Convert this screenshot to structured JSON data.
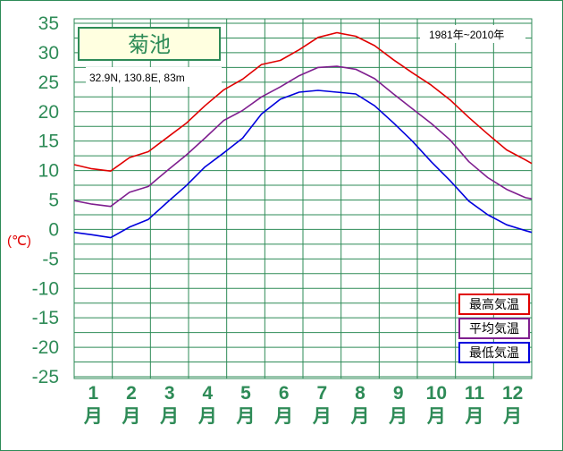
{
  "station_name": "菊池",
  "coords": "32.9N,  130.8E,  83m",
  "period": "1981年~2010年",
  "unit_label": "(℃)",
  "chart_data": {
    "type": "line",
    "ylim": [
      -25,
      35
    ],
    "yticks": [
      "35",
      "30",
      "25",
      "20",
      "15",
      "10",
      "5",
      "0",
      "-5",
      "-10",
      "-15",
      "-20",
      "-25"
    ],
    "months": [
      "1",
      "2",
      "3",
      "4",
      "5",
      "6",
      "7",
      "8",
      "9",
      "10",
      "11",
      "12"
    ],
    "month_suffix": "月",
    "x": [
      1,
      15,
      30,
      45,
      60,
      75,
      90,
      105,
      120,
      135,
      150,
      165,
      180,
      195,
      210,
      225,
      240,
      255,
      270,
      285,
      300,
      315,
      330,
      345,
      360,
      365
    ],
    "series": [
      {
        "name": "最高気温",
        "color": "#e00000",
        "values": [
          11.0,
          10.3,
          9.9,
          12.2,
          13.2,
          15.6,
          18.0,
          21.0,
          23.7,
          25.5,
          28.0,
          28.7,
          30.5,
          32.6,
          33.4,
          32.8,
          31.2,
          28.8,
          26.6,
          24.5,
          22.0,
          19.0,
          16.2,
          13.5,
          11.8,
          11.2
        ]
      },
      {
        "name": "平均気温",
        "color": "#7f1f8f",
        "values": [
          4.9,
          4.3,
          3.9,
          6.3,
          7.3,
          10.0,
          12.6,
          15.5,
          18.5,
          20.2,
          22.5,
          24.2,
          26.1,
          27.5,
          27.7,
          27.2,
          25.6,
          23.0,
          20.5,
          18.0,
          15.2,
          11.5,
          8.8,
          6.8,
          5.4,
          5.2
        ]
      },
      {
        "name": "最低気温",
        "color": "#0000dd",
        "values": [
          -0.5,
          -0.9,
          -1.4,
          0.4,
          1.7,
          4.6,
          7.4,
          10.6,
          13.0,
          15.5,
          19.6,
          22.1,
          23.3,
          23.6,
          23.3,
          23.0,
          21.0,
          18.1,
          15.0,
          11.5,
          8.3,
          4.8,
          2.5,
          0.8,
          -0.2,
          -0.5
        ]
      }
    ],
    "grid": true,
    "legend_position": "bottom-right"
  }
}
